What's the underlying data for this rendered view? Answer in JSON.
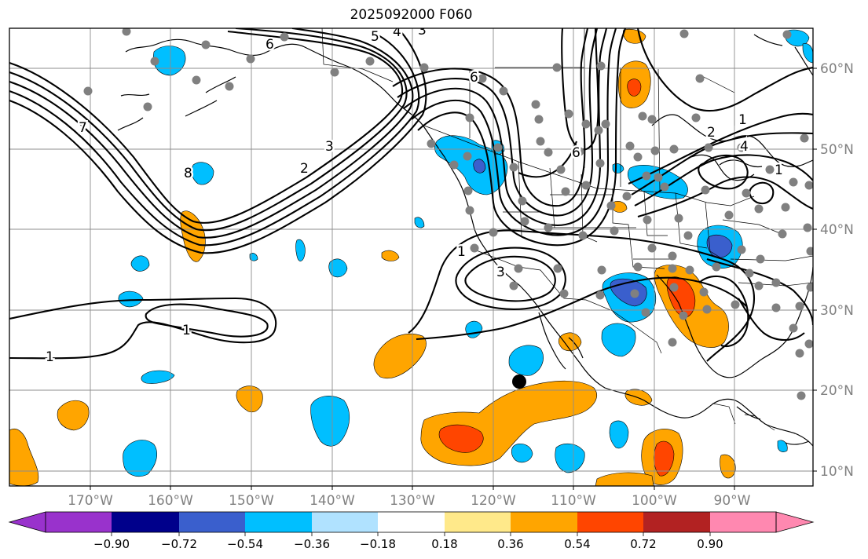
{
  "title": "2025092000 F060",
  "longitude_labels": [
    "170°W",
    "160°W",
    "150°W",
    "140°W",
    "130°W",
    "120°W",
    "110°W",
    "100°W",
    "90°W"
  ],
  "latitude_labels": [
    "60°N",
    "50°N",
    "40°N",
    "30°N",
    "20°N",
    "10°N"
  ],
  "colorbar": {
    "ticks": [
      "−0.90",
      "−0.72",
      "−0.54",
      "−0.36",
      "−0.18",
      "0.18",
      "0.36",
      "0.54",
      "0.72",
      "0.90"
    ],
    "colors": [
      "#9932cc",
      "#00008b",
      "#3a5fcd",
      "#00bfff",
      "#b0e2ff",
      "#ffffff",
      "#ffe98a",
      "#ffa500",
      "#ff4500",
      "#b22222",
      "#ff88b0"
    ]
  },
  "contour_labels": [
    "6",
    "5",
    "4",
    "3",
    "6",
    "7",
    "3",
    "2",
    "8",
    "1",
    "2",
    "4",
    "6",
    "1",
    "1",
    "3",
    "1",
    "1"
  ],
  "colors": {
    "frame": "#000000",
    "grid": "#8c8c8c",
    "station": "#808080",
    "marker": "#000000"
  }
}
